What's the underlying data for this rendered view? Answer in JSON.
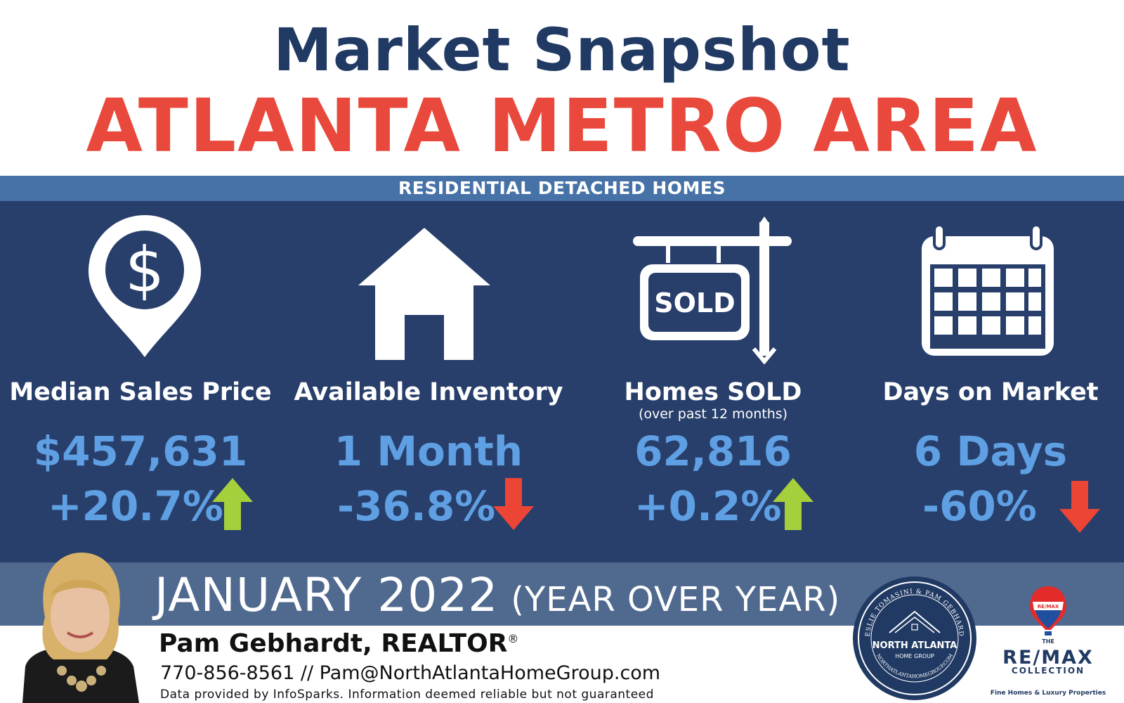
{
  "header": {
    "title": "Market Snapshot",
    "subtitle": "ATLANTA METRO AREA",
    "band": "RESIDENTIAL DETACHED HOMES"
  },
  "colors": {
    "navy": "#213a63",
    "red": "#e9493c",
    "panel": "#283f6b",
    "band": "#4672a8",
    "value_blue": "#5f9fe3",
    "up_green": "#a6cf3c",
    "down_red": "#ec4435"
  },
  "stats": [
    {
      "icon": "map-pin-dollar-icon",
      "label": "Median Sales Price",
      "sublabel": "",
      "value": "$457,631",
      "change": "+20.7%",
      "trend": "up"
    },
    {
      "icon": "house-icon",
      "label": "Available Inventory",
      "sublabel": "",
      "value": "1 Month",
      "change": "-36.8%",
      "trend": "down"
    },
    {
      "icon": "sold-sign-icon",
      "label": "Homes SOLD",
      "sublabel": "(over past 12 months)",
      "value": "62,816",
      "change": "+0.2%",
      "trend": "up",
      "sign_text": "SOLD"
    },
    {
      "icon": "calendar-icon",
      "label": "Days on Market",
      "sublabel": "",
      "value": "6 Days",
      "change": "-60%",
      "trend": "down"
    }
  ],
  "period": {
    "month": "JANUARY 2022",
    "note": "(YEAR OVER YEAR)"
  },
  "agent": {
    "name": "Pam Gebhardt, REALTOR",
    "reg_mark": "®",
    "contact": "770-856-8561 // Pam@NorthAtlantaHomeGroup.com",
    "disclaimer": "Data provided by InfoSparks. Information deemed reliable but not guaranteed"
  },
  "seal": {
    "top_text": "LESLIE TOMASINI & PAM GEBHARDT",
    "name_line1": "NORTH ATLANTA",
    "name_line2": "HOME GROUP",
    "bottom_text": "NORTHATLANTAHOMEGROUP.COM"
  },
  "remax": {
    "balloon_text": "RE/MAX",
    "the": "THE",
    "brand": "RE/MAX",
    "collection": "COLLECTION",
    "tagline": "Fine Homes & Luxury Properties"
  }
}
